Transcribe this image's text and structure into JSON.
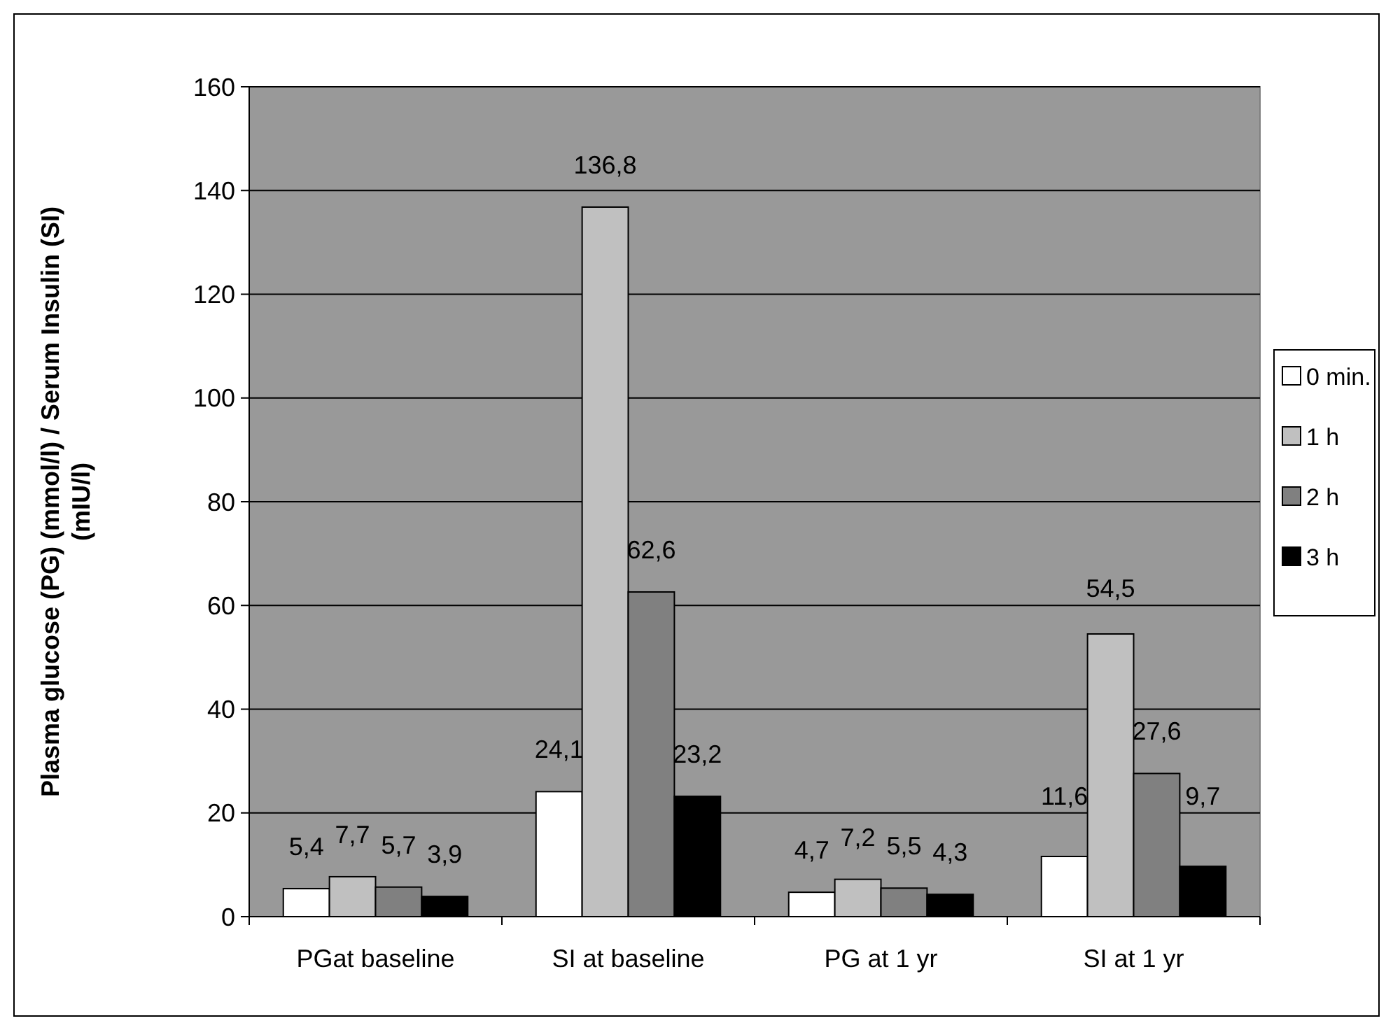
{
  "chart_data": {
    "type": "bar",
    "ylabel": "Plasma glucose (PG) (mmol/l) / Serum Insulin (SI) (mIU/l)",
    "categories": [
      "PGat baseline",
      "SI at baseline",
      "PG at 1 yr",
      "SI at 1 yr"
    ],
    "series": [
      {
        "name": "0 min.",
        "color": "#ffffff",
        "values": [
          5.4,
          24.1,
          4.7,
          11.6
        ],
        "value_labels": [
          "5,4",
          "24,1",
          "4,7",
          "11,6"
        ]
      },
      {
        "name": "1 h",
        "color": "#c0c0c0",
        "values": [
          7.7,
          136.8,
          7.2,
          54.5
        ],
        "value_labels": [
          "7,7",
          "136,8",
          "7,2",
          "54,5"
        ]
      },
      {
        "name": "2 h",
        "color": "#808080",
        "values": [
          5.7,
          62.6,
          5.5,
          27.6
        ],
        "value_labels": [
          "5,7",
          "62,6",
          "5,5",
          "27,6"
        ]
      },
      {
        "name": "3 h",
        "color": "#000000",
        "values": [
          3.9,
          23.2,
          4.3,
          9.7
        ],
        "value_labels": [
          "3,9",
          "23,2",
          "4,3",
          "9,7"
        ]
      }
    ],
    "ylim": [
      0,
      160
    ],
    "yticks": [
      0,
      20,
      40,
      60,
      80,
      100,
      120,
      140,
      160
    ],
    "grid": "y",
    "legend": "right"
  }
}
